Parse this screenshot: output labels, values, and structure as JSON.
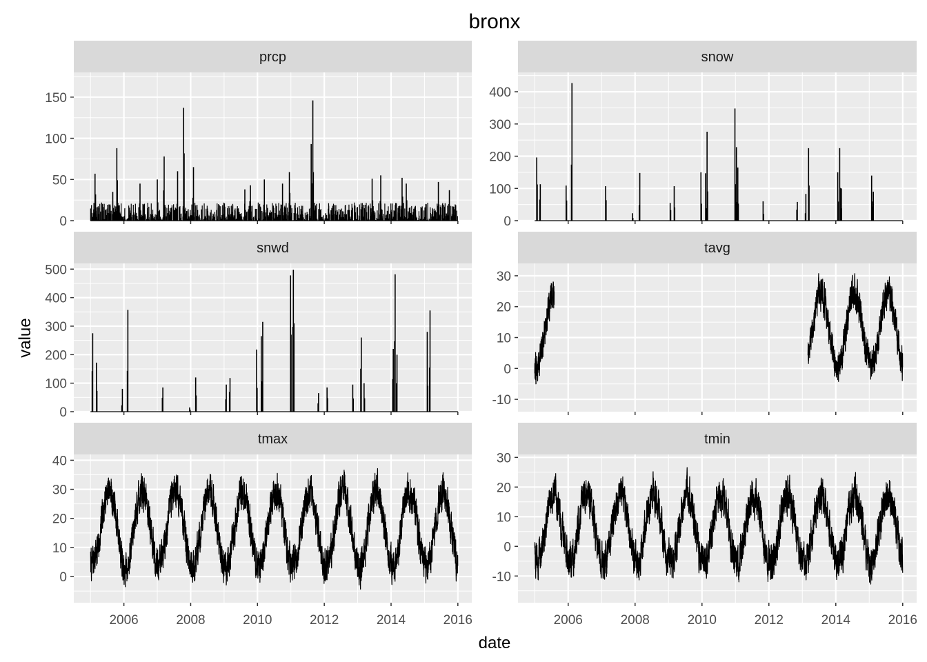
{
  "chart_data": {
    "type": "line",
    "title": "bronx",
    "xlabel": "date",
    "ylabel": "value",
    "x_ticks": [
      "2006",
      "2008",
      "2010",
      "2012",
      "2014",
      "2016"
    ],
    "xlim": [
      "2004-07",
      "2016-06"
    ],
    "x_range": [
      "2005-01-01",
      "2015-12-31"
    ],
    "grid": true,
    "legend": "none",
    "colors": {
      "panel_bg": "#EBEBEB",
      "strip_bg": "#D9D9D9",
      "grid": "#FFFFFF",
      "line": "#000000"
    },
    "panels": [
      {
        "name": "prcp",
        "ylim": [
          0,
          180
        ],
        "y_ticks": [
          0,
          50,
          100,
          150
        ],
        "baseline_max": 22,
        "spikes": [
          {
            "x": "2005-02-20",
            "y": 57
          },
          {
            "x": "2005-09-01",
            "y": 35
          },
          {
            "x": "2005-10-15",
            "y": 88
          },
          {
            "x": "2006-06-25",
            "y": 45
          },
          {
            "x": "2007-01-01",
            "y": 50
          },
          {
            "x": "2007-03-15",
            "y": 78
          },
          {
            "x": "2007-08-10",
            "y": 60
          },
          {
            "x": "2007-10-15",
            "y": 137
          },
          {
            "x": "2008-02-01",
            "y": 65
          },
          {
            "x": "2009-08-15",
            "y": 38
          },
          {
            "x": "2009-10-15",
            "y": 43
          },
          {
            "x": "2010-03-15",
            "y": 50
          },
          {
            "x": "2010-10-01",
            "y": 45
          },
          {
            "x": "2010-12-15",
            "y": 59
          },
          {
            "x": "2011-08-10",
            "y": 93
          },
          {
            "x": "2011-08-28",
            "y": 146
          },
          {
            "x": "2013-06-07",
            "y": 51
          },
          {
            "x": "2013-09-10",
            "y": 55
          },
          {
            "x": "2014-04-30",
            "y": 52
          },
          {
            "x": "2014-06-15",
            "y": 45
          },
          {
            "x": "2015-06-01",
            "y": 47
          },
          {
            "x": "2015-09-30",
            "y": 37
          }
        ]
      },
      {
        "name": "snow",
        "ylim": [
          0,
          460
        ],
        "y_ticks": [
          0,
          100,
          200,
          300,
          400
        ],
        "baseline_max": 0,
        "spikes": [
          {
            "x": "2005-01-23",
            "y": 196
          },
          {
            "x": "2005-03-01",
            "y": 113
          },
          {
            "x": "2005-12-09",
            "y": 109
          },
          {
            "x": "2006-02-12",
            "y": 427
          },
          {
            "x": "2007-02-14",
            "y": 107
          },
          {
            "x": "2007-12-02",
            "y": 23
          },
          {
            "x": "2008-02-22",
            "y": 148
          },
          {
            "x": "2009-01-19",
            "y": 55
          },
          {
            "x": "2009-03-02",
            "y": 107
          },
          {
            "x": "2009-12-20",
            "y": 150
          },
          {
            "x": "2010-02-10",
            "y": 147
          },
          {
            "x": "2010-02-26",
            "y": 276
          },
          {
            "x": "2010-12-26",
            "y": 348
          },
          {
            "x": "2011-01-12",
            "y": 228
          },
          {
            "x": "2011-01-27",
            "y": 165
          },
          {
            "x": "2011-10-29",
            "y": 60
          },
          {
            "x": "2012-11-07",
            "y": 58
          },
          {
            "x": "2013-02-09",
            "y": 83
          },
          {
            "x": "2013-03-08",
            "y": 225
          },
          {
            "x": "2014-01-22",
            "y": 150
          },
          {
            "x": "2014-02-13",
            "y": 225
          },
          {
            "x": "2014-03-03",
            "y": 100
          },
          {
            "x": "2015-01-27",
            "y": 140
          },
          {
            "x": "2015-02-15",
            "y": 90
          }
        ]
      },
      {
        "name": "snwd",
        "ylim": [
          0,
          520
        ],
        "y_ticks": [
          0,
          100,
          200,
          300,
          400,
          500
        ],
        "baseline_max": 0,
        "spikes": [
          {
            "x": "2005-01-25",
            "y": 275
          },
          {
            "x": "2005-03-05",
            "y": 172
          },
          {
            "x": "2005-12-15",
            "y": 80
          },
          {
            "x": "2006-02-14",
            "y": 357
          },
          {
            "x": "2007-03-01",
            "y": 85
          },
          {
            "x": "2007-12-20",
            "y": 15
          },
          {
            "x": "2008-02-25",
            "y": 120
          },
          {
            "x": "2009-01-25",
            "y": 95
          },
          {
            "x": "2009-03-05",
            "y": 118
          },
          {
            "x": "2009-12-22",
            "y": 218
          },
          {
            "x": "2010-02-12",
            "y": 265
          },
          {
            "x": "2010-02-28",
            "y": 315
          },
          {
            "x": "2010-12-28",
            "y": 478
          },
          {
            "x": "2011-01-28",
            "y": 498
          },
          {
            "x": "2011-02-05",
            "y": 310
          },
          {
            "x": "2011-10-30",
            "y": 65
          },
          {
            "x": "2012-02-01",
            "y": 85
          },
          {
            "x": "2012-11-08",
            "y": 95
          },
          {
            "x": "2013-02-10",
            "y": 260
          },
          {
            "x": "2013-03-10",
            "y": 100
          },
          {
            "x": "2014-01-25",
            "y": 220
          },
          {
            "x": "2014-02-15",
            "y": 482
          },
          {
            "x": "2014-03-05",
            "y": 200
          },
          {
            "x": "2015-02-01",
            "y": 280
          },
          {
            "x": "2015-03-01",
            "y": 355
          }
        ]
      },
      {
        "name": "tavg",
        "ylim": [
          -14,
          34
        ],
        "y_ticks": [
          -10,
          0,
          10,
          20,
          30
        ],
        "segments": [
          [
            "2005-01-01",
            "2005-07-31"
          ],
          [
            "2013-03-01",
            "2015-12-31"
          ]
        ],
        "seasonal": {
          "mean": 12.5,
          "amplitude": 12,
          "noise": 4
        }
      },
      {
        "name": "tmax",
        "ylim": [
          -9,
          42
        ],
        "y_ticks": [
          0,
          10,
          20,
          30,
          40
        ],
        "segments": [
          [
            "2005-01-01",
            "2015-12-31"
          ]
        ],
        "seasonal": {
          "mean": 16.5,
          "amplitude": 13,
          "noise": 4.5
        }
      },
      {
        "name": "tmin",
        "ylim": [
          -19,
          31
        ],
        "y_ticks": [
          -10,
          0,
          10,
          20,
          30
        ],
        "segments": [
          [
            "2005-01-01",
            "2015-12-31"
          ]
        ],
        "seasonal": {
          "mean": 6,
          "amplitude": 11.5,
          "noise": 4.5
        }
      }
    ]
  }
}
